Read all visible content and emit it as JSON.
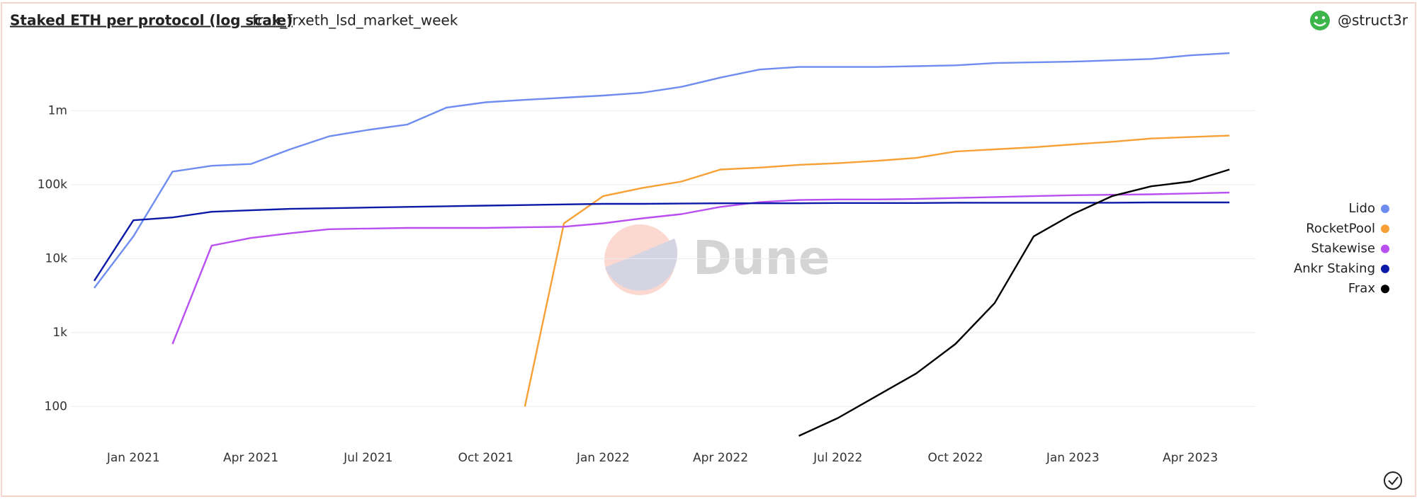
{
  "header": {
    "title": "Staked ETH per protocol (log scale)",
    "query": "frax_frxeth_lsd_market_week",
    "user": "@struct3r"
  },
  "watermark": "Dune",
  "chart_data": {
    "type": "line",
    "log_scale": true,
    "grid": true,
    "legend": "right",
    "categories": [
      null,
      "Jan 2021",
      null,
      null,
      "Apr 2021",
      null,
      null,
      "Jul 2021",
      null,
      null,
      "Oct 2021",
      null,
      null,
      "Jan 2022",
      null,
      null,
      "Apr 2022",
      null,
      null,
      "Jul 2022",
      null,
      null,
      "Oct 2022",
      null,
      null,
      "Jan 2023",
      null,
      null,
      "Apr 2023",
      null
    ],
    "ylim": [
      30,
      8000000
    ],
    "yticks": [
      {
        "value": 100,
        "label": "100"
      },
      {
        "value": 1000,
        "label": "1k"
      },
      {
        "value": 10000,
        "label": "10k"
      },
      {
        "value": 100000,
        "label": "100k"
      },
      {
        "value": 1000000,
        "label": "1m"
      }
    ],
    "series": [
      {
        "name": "Lido",
        "color": "#6f8df0",
        "values": [
          4000,
          20000,
          150000,
          180000,
          190000,
          300000,
          450000,
          550000,
          650000,
          1100000,
          1300000,
          1400000,
          1500000,
          1600000,
          1750000,
          2100000,
          2800000,
          3600000,
          3900000,
          3900000,
          3900000,
          4000000,
          4100000,
          4400000,
          4500000,
          4600000,
          4800000,
          5000000,
          5600000,
          6000000
        ]
      },
      {
        "name": "RocketPool",
        "color": "#f7a035",
        "values": [
          null,
          null,
          null,
          null,
          null,
          null,
          null,
          null,
          null,
          null,
          null,
          100,
          30000,
          70000,
          90000,
          110000,
          160000,
          170000,
          185000,
          195000,
          210000,
          230000,
          280000,
          300000,
          320000,
          350000,
          380000,
          420000,
          440000,
          460000
        ]
      },
      {
        "name": "Stakewise",
        "color": "#b94ff0",
        "values": [
          null,
          null,
          700,
          15000,
          19000,
          22000,
          25000,
          25500,
          26000,
          26000,
          26000,
          26500,
          27000,
          30000,
          35000,
          40000,
          50000,
          58000,
          62000,
          63000,
          63000,
          64000,
          66000,
          68000,
          70000,
          72000,
          73000,
          74000,
          76000,
          78000
        ]
      },
      {
        "name": "Ankr Staking",
        "color": "#0c1aa8",
        "values": [
          5000,
          33000,
          36000,
          43000,
          45000,
          47000,
          48000,
          49000,
          50000,
          51000,
          52000,
          53000,
          54000,
          55000,
          55000,
          55500,
          56000,
          56000,
          56000,
          56500,
          56500,
          56500,
          57000,
          57000,
          57000,
          57000,
          57000,
          57500,
          57500,
          57500
        ]
      },
      {
        "name": "Frax",
        "color": "#000000",
        "values": [
          null,
          null,
          null,
          null,
          null,
          null,
          null,
          null,
          null,
          null,
          null,
          null,
          null,
          null,
          null,
          null,
          null,
          null,
          40,
          70,
          140,
          280,
          700,
          2500,
          20000,
          40000,
          70000,
          95000,
          110000,
          160000
        ]
      }
    ]
  }
}
